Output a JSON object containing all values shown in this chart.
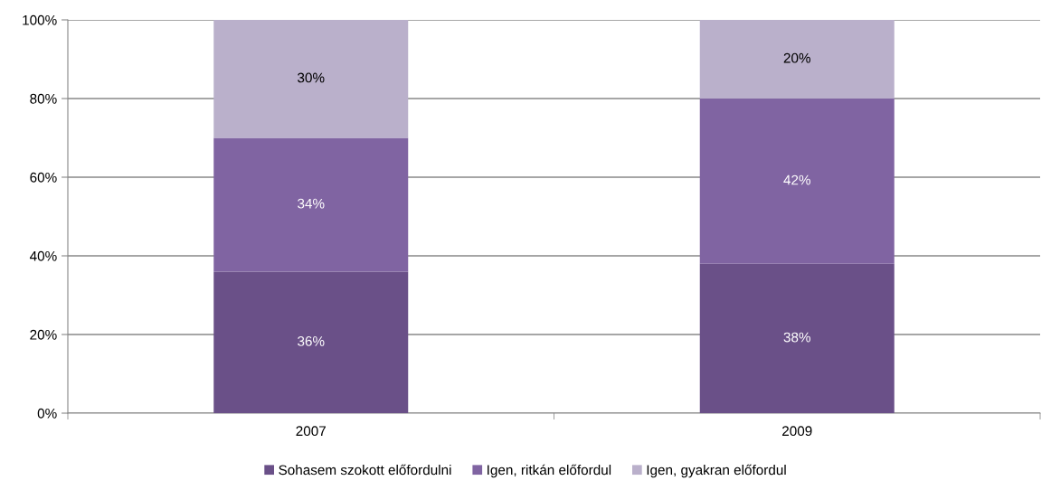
{
  "chart_data": {
    "type": "bar",
    "stacked": true,
    "categories": [
      "2007",
      "2009"
    ],
    "series": [
      {
        "name": "Sohasem szokott előfordulni",
        "color": "#6a5088",
        "values": [
          36,
          38
        ],
        "value_labels": [
          "36%",
          "38%"
        ]
      },
      {
        "name": "Igen, ritkán előfordul",
        "color": "#8064a2",
        "values": [
          34,
          42
        ],
        "value_labels": [
          "34%",
          "42%"
        ]
      },
      {
        "name": "Igen, gyakran előfordul",
        "color": "#bab0cb",
        "values": [
          30,
          20
        ],
        "value_labels": [
          "30%",
          "20%"
        ]
      }
    ],
    "ylim": [
      0,
      100
    ],
    "yticks": [
      {
        "value": 0,
        "label": "0%"
      },
      {
        "value": 20,
        "label": "20%"
      },
      {
        "value": 40,
        "label": "40%"
      },
      {
        "value": 60,
        "label": "60%"
      },
      {
        "value": 80,
        "label": "80%"
      },
      {
        "value": 100,
        "label": "100%"
      }
    ],
    "grid": "y",
    "legend": "bottom"
  }
}
